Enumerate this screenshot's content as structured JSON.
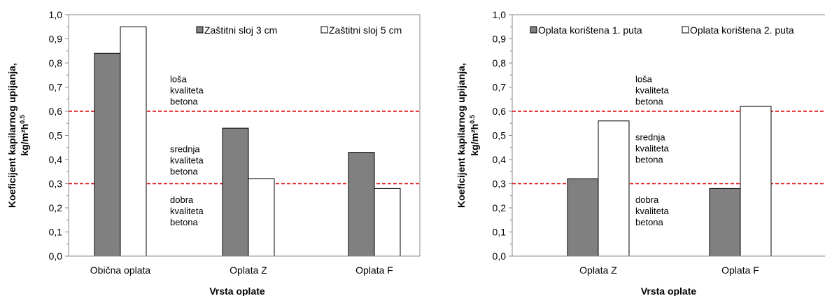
{
  "chart_data": [
    {
      "type": "bar",
      "categories": [
        "Obična oplata",
        "Oplata Z",
        "Oplata F"
      ],
      "series": [
        {
          "name": "Zaštitni sloj 3 cm",
          "values": [
            0.84,
            0.53,
            0.43
          ],
          "color": "#808080"
        },
        {
          "name": "Zaštitni sloj 5 cm",
          "values": [
            0.95,
            0.32,
            0.28
          ],
          "color": "#ffffff"
        }
      ],
      "xlabel": "Vrsta oplate",
      "ylabel": "Koeficijent kapilarnog upijanja,",
      "ylabel_unit": "kg/m²h",
      "ylabel_unit_exp": "0.5",
      "ylim": [
        0,
        1.0
      ],
      "y_ticks": [
        "0,0",
        "0,1",
        "0,2",
        "0,3",
        "0,4",
        "0,5",
        "0,6",
        "0,7",
        "0,8",
        "0,9",
        "1,0"
      ],
      "grid": false,
      "legend": "top-right",
      "thresholds": [
        {
          "value": 0.6,
          "color": "#e00000"
        },
        {
          "value": 0.3,
          "color": "#e00000"
        }
      ],
      "annotations": [
        {
          "lines": [
            "loša",
            "kvaliteta",
            "betona"
          ],
          "y": 0.72
        },
        {
          "lines": [
            "srednja",
            "kvaliteta",
            "betona"
          ],
          "y": 0.43
        },
        {
          "lines": [
            "dobra",
            "kvaliteta",
            "betona"
          ],
          "y": 0.22
        }
      ]
    },
    {
      "type": "bar",
      "categories": [
        "Oplata Z",
        "Oplata F"
      ],
      "series": [
        {
          "name": "Oplata korištena 1. puta",
          "values": [
            0.32,
            0.28
          ],
          "color": "#808080"
        },
        {
          "name": "Oplata korištena 2. puta",
          "values": [
            0.56,
            0.62
          ],
          "color": "#ffffff"
        }
      ],
      "xlabel": "Vrsta oplate",
      "ylabel": "Koeficijent kapilarnog upijanja,",
      "ylabel_unit": "kg/m²h",
      "ylabel_unit_exp": "0.5",
      "ylim": [
        0,
        1.0
      ],
      "y_ticks": [
        "0,0",
        "0,1",
        "0,2",
        "0,3",
        "0,4",
        "0,5",
        "0,6",
        "0,7",
        "0,8",
        "0,9",
        "1,0"
      ],
      "grid": false,
      "legend": "top",
      "thresholds": [
        {
          "value": 0.6,
          "color": "#e00000"
        },
        {
          "value": 0.3,
          "color": "#e00000"
        }
      ],
      "annotations": [
        {
          "lines": [
            "loša",
            "kvaliteta",
            "betona"
          ],
          "y": 0.72
        },
        {
          "lines": [
            "srednja",
            "kvaliteta",
            "betona"
          ],
          "y": 0.48
        },
        {
          "lines": [
            "dobra",
            "kvaliteta",
            "betona"
          ],
          "y": 0.22
        }
      ]
    }
  ]
}
